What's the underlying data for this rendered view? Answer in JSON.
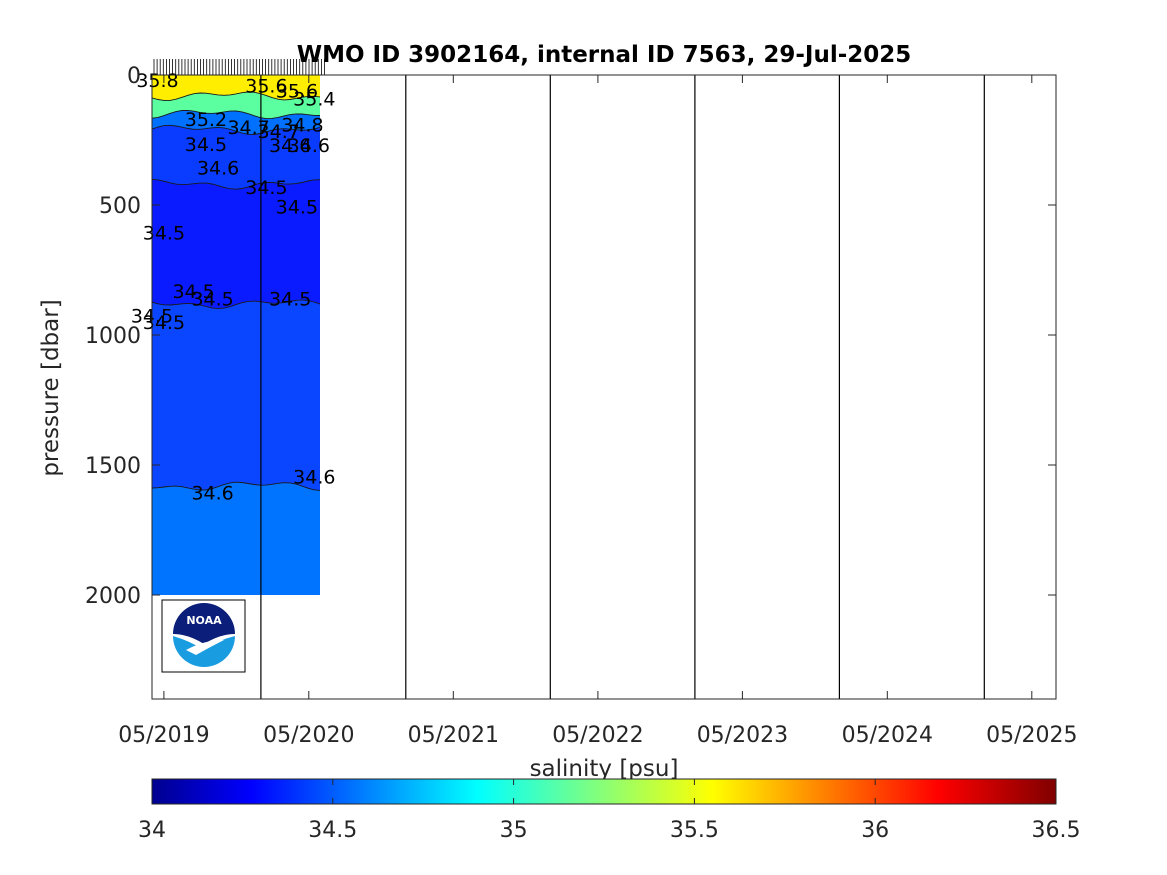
{
  "chart_data": {
    "type": "heatmap",
    "title": "WMO ID 3902164, internal ID 7563, 29-Jul-2025",
    "ylabel": "pressure [dbar]",
    "colorbar_label": "salinity [psu]",
    "x_axis": {
      "unit": "date",
      "range": [
        "2019-04-01",
        "2025-07-01"
      ],
      "ticks": [
        "2019-05-01",
        "2020-05-01",
        "2021-05-01",
        "2022-05-01",
        "2023-05-01",
        "2024-05-01",
        "2025-05-01"
      ],
      "tick_labels": [
        "05/2019",
        "05/2020",
        "05/2021",
        "05/2022",
        "05/2023",
        "05/2024",
        "05/2025"
      ]
    },
    "y_axis": {
      "reversed": true,
      "range": [
        0,
        2400
      ],
      "ticks": [
        0,
        500,
        1000,
        1500,
        2000
      ],
      "tick_labels": [
        "0",
        "500",
        "1000",
        "1500",
        "2000"
      ]
    },
    "colorbar": {
      "colormap": "jet",
      "range": [
        34,
        36.5
      ],
      "ticks": [
        34,
        34.5,
        35,
        35.5,
        36,
        36.5
      ],
      "tick_labels": [
        "34",
        "34.5",
        "35",
        "35.5",
        "36",
        "36.5"
      ],
      "location": "bottom"
    },
    "year_boundaries": [
      "2020-01-01",
      "2021-01-01",
      "2022-01-01",
      "2023-01-01",
      "2024-01-01",
      "2025-01-01"
    ],
    "profile_dates_range": [
      "2019-04-01",
      "2020-06-01"
    ],
    "layers": [
      {
        "from_dbar": 0,
        "to_dbar": 80,
        "salinity": 35.7,
        "color": "#ffee00"
      },
      {
        "from_dbar": 80,
        "to_dbar": 150,
        "salinity": 35.2,
        "color": "#5cffa0"
      },
      {
        "from_dbar": 150,
        "to_dbar": 210,
        "salinity": 34.75,
        "color": "#0070ff"
      },
      {
        "from_dbar": 210,
        "to_dbar": 420,
        "salinity": 34.55,
        "color": "#0a3cff"
      },
      {
        "from_dbar": 420,
        "to_dbar": 880,
        "salinity": 34.48,
        "color": "#0a1cff"
      },
      {
        "from_dbar": 880,
        "to_dbar": 1580,
        "salinity": 34.55,
        "color": "#0a46ff"
      },
      {
        "from_dbar": 1580,
        "to_dbar": 2000,
        "salinity": 34.65,
        "color": "#0074ff"
      }
    ],
    "contour_labels": [
      {
        "text": "35.8",
        "date": "2019-04-15",
        "dbar": 20
      },
      {
        "text": "35.6",
        "date": "2020-01-15",
        "dbar": 40
      },
      {
        "text": "35.6",
        "date": "2020-04-01",
        "dbar": 60
      },
      {
        "text": "35.4",
        "date": "2020-05-15",
        "dbar": 90
      },
      {
        "text": "35.2",
        "date": "2019-08-15",
        "dbar": 170
      },
      {
        "text": "34.7",
        "date": "2019-12-01",
        "dbar": 200
      },
      {
        "text": "34.8",
        "date": "2020-04-15",
        "dbar": 190
      },
      {
        "text": "34.7",
        "date": "2020-02-15",
        "dbar": 215
      },
      {
        "text": "34.6",
        "date": "2020-05-01",
        "dbar": 270
      },
      {
        "text": "34.5",
        "date": "2019-08-15",
        "dbar": 265
      },
      {
        "text": "34.6",
        "date": "2019-09-15",
        "dbar": 355
      },
      {
        "text": "34.6",
        "date": "2020-03-15",
        "dbar": 270
      },
      {
        "text": "34.5",
        "date": "2020-01-15",
        "dbar": 430
      },
      {
        "text": "34.5",
        "date": "2020-04-01",
        "dbar": 505
      },
      {
        "text": "34.5",
        "date": "2019-05-01",
        "dbar": 605
      },
      {
        "text": "34.5",
        "date": "2019-07-15",
        "dbar": 830
      },
      {
        "text": "34.5",
        "date": "2019-09-01",
        "dbar": 860
      },
      {
        "text": "34.5",
        "date": "2020-03-15",
        "dbar": 860
      },
      {
        "text": "34.5",
        "date": "2019-04-01",
        "dbar": 925
      },
      {
        "text": "34.5",
        "date": "2019-05-01",
        "dbar": 950
      },
      {
        "text": "34.6",
        "date": "2019-09-01",
        "dbar": 1605
      },
      {
        "text": "34.6",
        "date": "2020-05-15",
        "dbar": 1545
      }
    ]
  },
  "logo": {
    "name": "noaa-logo",
    "text": "NOAA"
  }
}
